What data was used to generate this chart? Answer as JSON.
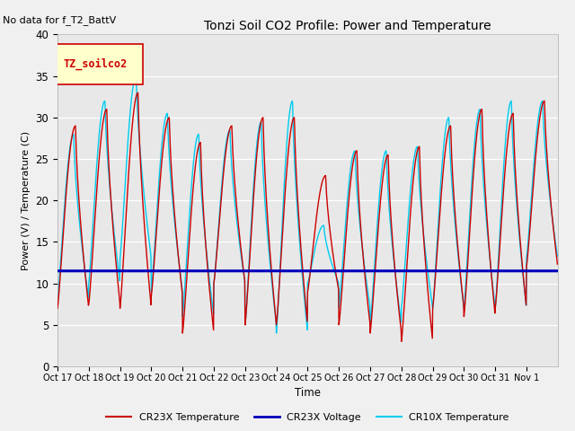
{
  "title": "Tonzi Soil CO2 Profile: Power and Temperature",
  "subtitle": "No data for f_T2_BattV",
  "ylabel": "Power (V) / Temperature (C)",
  "xlabel": "Time",
  "ylim": [
    0,
    40
  ],
  "voltage_value": 11.5,
  "x_tick_labels": [
    "Oct 17",
    "Oct 18",
    "Oct 19",
    "Oct 20",
    "Oct 21",
    "Oct 22",
    "Oct 23",
    "Oct 24",
    "Oct 25",
    "Oct 26",
    "Oct 27",
    "Oct 28",
    "Oct 29",
    "Oct 30",
    "Oct 31",
    "Nov 1"
  ],
  "fig_bg_color": "#f0f0f0",
  "plot_bg_color": "#e8e8e8",
  "line_cr23x_temp_color": "#cc0000",
  "line_cr23x_volt_color": "#0000bb",
  "line_cr10x_temp_color": "#00ccee",
  "legend_box_facecolor": "#ffffcc",
  "legend_box_edgecolor": "#cc0000",
  "legend_text_color": "#cc0000",
  "legend_label": "TZ_soilco2",
  "peaks_cr23x": [
    29,
    31,
    33,
    30,
    27,
    29,
    30,
    30,
    23,
    26,
    25.5,
    26.5,
    29,
    31,
    30.5,
    32
  ],
  "troughs_cr23x": [
    7,
    7.5,
    7,
    8.5,
    4,
    10,
    5,
    5,
    9,
    5,
    4,
    3,
    7,
    6,
    7,
    12
  ],
  "peaks_cr10x": [
    28,
    32,
    35,
    30.5,
    28,
    28.5,
    29.5,
    32,
    17,
    26,
    26,
    26.5,
    30,
    31,
    32,
    32
  ],
  "troughs_cr10x": [
    8,
    10,
    13,
    9,
    6,
    10,
    5,
    4,
    10,
    7,
    5,
    7,
    7,
    7,
    7,
    13
  ]
}
